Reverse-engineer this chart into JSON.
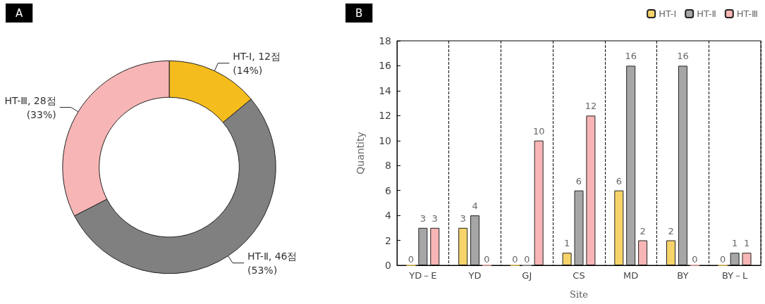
{
  "chart_data": [
    {
      "type": "donut",
      "title": "A",
      "categories": [
        "HT-Ⅰ",
        "HT-Ⅱ",
        "HT-Ⅲ"
      ],
      "values": [
        12,
        46,
        28
      ],
      "colors": [
        "#f5bc1e",
        "#808080",
        "#f7b5b5"
      ],
      "value_labels": [
        "12점\n(14%)",
        "46점\n(53%)",
        "28점\n(33%)"
      ],
      "legend": false
    },
    {
      "type": "bar",
      "title": "B",
      "xlabel": "Site",
      "ylabel": "Quantity",
      "categories": [
        "YD－E",
        "YD",
        "GJ",
        "CS",
        "MD",
        "BY",
        "BY－L"
      ],
      "series": [
        {
          "name": "HT-Ⅰ",
          "color": "#f7d46a",
          "values": [
            0,
            3,
            0,
            1,
            6,
            2,
            0
          ]
        },
        {
          "name": "HT-Ⅱ",
          "color": "#a6a6a6",
          "values": [
            3,
            4,
            0,
            6,
            16,
            16,
            1
          ]
        },
        {
          "name": "HT-Ⅲ",
          "color": "#f8b5b5",
          "values": [
            3,
            0,
            10,
            12,
            2,
            0,
            1
          ]
        }
      ],
      "ylim": [
        0,
        18
      ],
      "yticks": [
        0,
        2,
        4,
        6,
        8,
        10,
        12,
        14,
        16,
        18
      ],
      "grid": "x",
      "legend": "top right",
      "data_labels": true
    }
  ]
}
